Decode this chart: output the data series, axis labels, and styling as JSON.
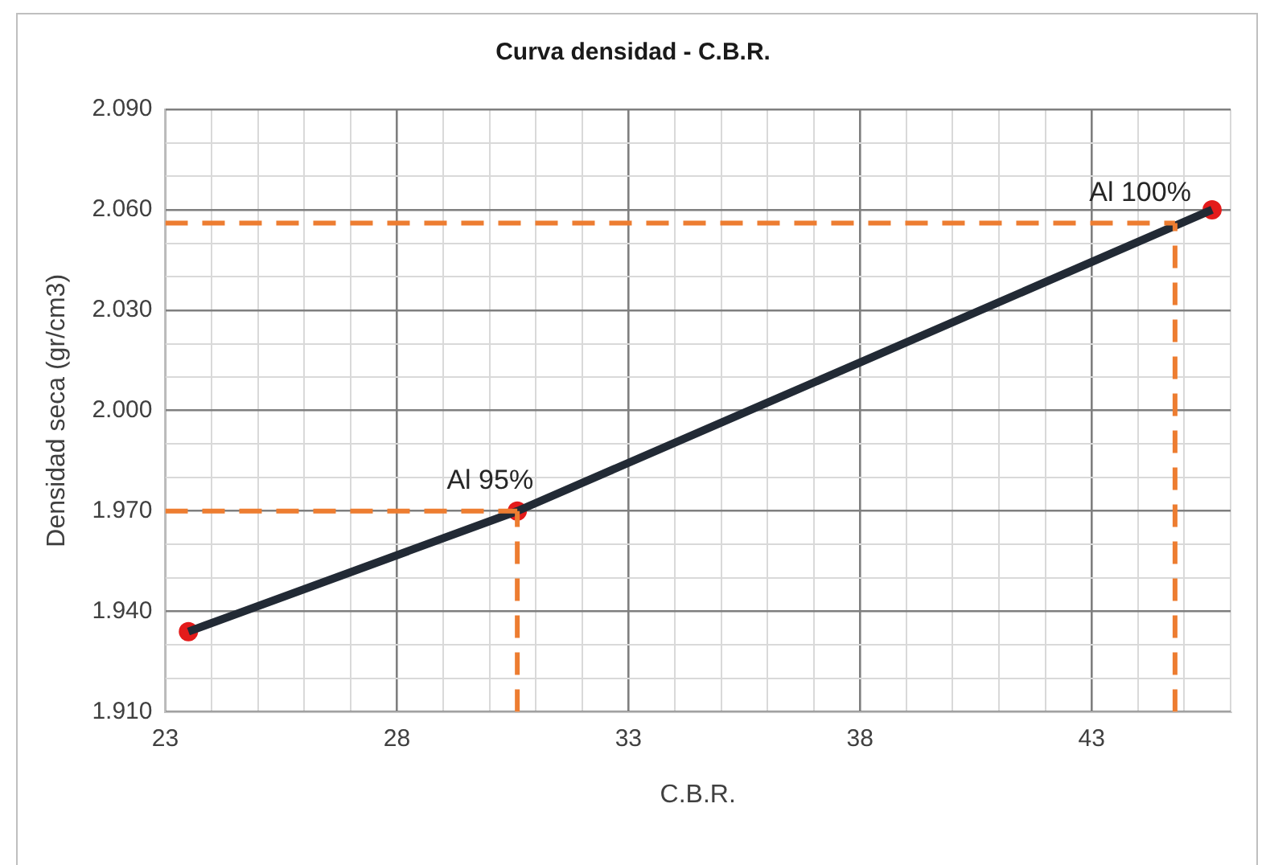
{
  "chart_data": {
    "type": "line",
    "title": "Curva densidad - C.B.R.",
    "xlabel": "C.B.R.",
    "ylabel": "Densidad seca (gr/cm3)",
    "xlim": [
      23,
      46
    ],
    "xticks": [
      23,
      {
        "value": 24,
        "label": null
      },
      {
        "value": 25,
        "label": null
      },
      {
        "value": 26,
        "label": null
      },
      {
        "value": 27,
        "label": null
      },
      28,
      {
        "value": 29,
        "label": null
      },
      {
        "value": 30,
        "label": null
      },
      {
        "value": 31,
        "label": null
      },
      {
        "value": 32,
        "label": null
      },
      33,
      {
        "value": 34,
        "label": null
      },
      {
        "value": 35,
        "label": null
      },
      {
        "value": 36,
        "label": null
      },
      {
        "value": 37,
        "label": null
      },
      38,
      {
        "value": 39,
        "label": null
      },
      {
        "value": 40,
        "label": null
      },
      {
        "value": 41,
        "label": null
      },
      {
        "value": 42,
        "label": null
      },
      43,
      {
        "value": 44,
        "label": null
      },
      {
        "value": 45,
        "label": null
      },
      {
        "value": 46,
        "label": null
      }
    ],
    "ylim": [
      1.91,
      2.09
    ],
    "yticks": [
      {
        "value": 1.91,
        "label": "1.910"
      },
      {
        "value": 1.92,
        "label": null
      },
      {
        "value": 1.93,
        "label": null
      },
      {
        "value": 1.94,
        "label": "1.940"
      },
      {
        "value": 1.95,
        "label": null
      },
      {
        "value": 1.96,
        "label": null
      },
      {
        "value": 1.97,
        "label": "1.970"
      },
      {
        "value": 1.98,
        "label": null
      },
      {
        "value": 1.99,
        "label": null
      },
      {
        "value": 2.0,
        "label": "2.000"
      },
      {
        "value": 2.01,
        "label": null
      },
      {
        "value": 2.02,
        "label": null
      },
      {
        "value": 2.03,
        "label": "2.030"
      },
      {
        "value": 2.04,
        "label": null
      },
      {
        "value": 2.05,
        "label": null
      },
      {
        "value": 2.06,
        "label": "2.060"
      },
      {
        "value": 2.07,
        "label": null
      },
      {
        "value": 2.08,
        "label": null
      },
      {
        "value": 2.09,
        "label": "2.090"
      }
    ],
    "grid": true,
    "series": [
      {
        "type": "line",
        "color": "#ed7d31",
        "line_style": "dashed",
        "x": [
          23,
          30.6
        ],
        "values": [
          1.97,
          1.97
        ]
      },
      {
        "type": "line",
        "color": "#ed7d31",
        "line_style": "dashed",
        "x": [
          30.6,
          30.6
        ],
        "values": [
          1.91,
          1.97
        ]
      },
      {
        "type": "line",
        "color": "#ed7d31",
        "line_style": "dashed",
        "x": [
          23,
          44.8
        ],
        "values": [
          2.056,
          2.056
        ]
      },
      {
        "type": "line",
        "color": "#ed7d31",
        "line_style": "dashed",
        "x": [
          44.8,
          44.8
        ],
        "values": [
          1.91,
          2.056
        ]
      },
      {
        "type": "line",
        "color": "#222a35",
        "line_style": "solid",
        "x": [
          23.5,
          30.6,
          45.6
        ],
        "values": [
          1.934,
          1.97,
          2.06
        ]
      },
      {
        "type": "scatter",
        "color": "#e31b1b",
        "marker": "circle",
        "x": [
          23.5,
          30.6,
          45.6
        ],
        "values": [
          1.934,
          1.97,
          2.06
        ]
      }
    ],
    "annotations": [
      {
        "text": "Al 95%",
        "x": 30.6,
        "y": 1.97
      },
      {
        "text": "Al 100%",
        "x": 44.8,
        "y": 2.056
      }
    ]
  }
}
